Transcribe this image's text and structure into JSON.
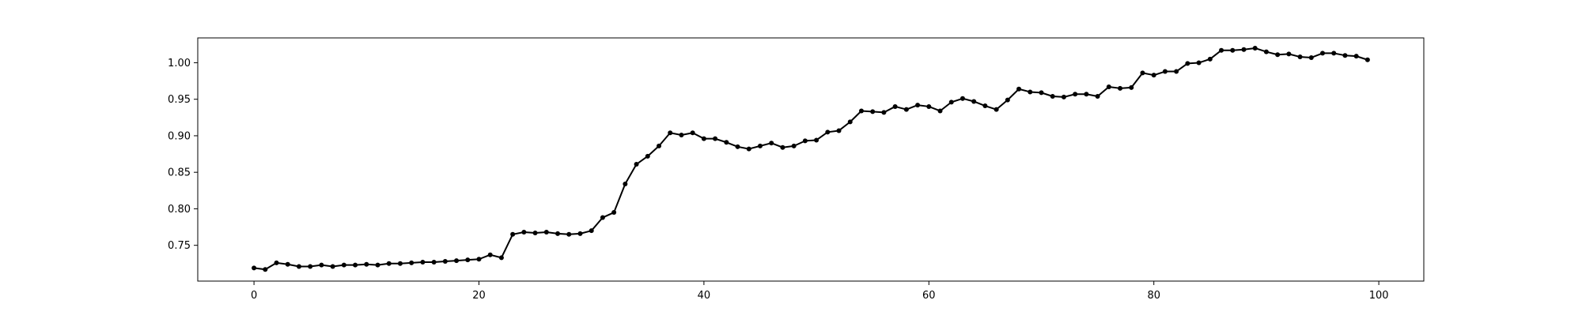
{
  "chart_data": {
    "type": "line",
    "title": "",
    "xlabel": "",
    "ylabel": "",
    "xlim": [
      -5,
      104
    ],
    "ylim": [
      0.701,
      1.034
    ],
    "xticks": [
      0,
      20,
      40,
      60,
      80,
      100
    ],
    "yticks": [
      0.75,
      0.8,
      0.85,
      0.9,
      0.95,
      1.0
    ],
    "xtick_labels": [
      "0",
      "20",
      "40",
      "60",
      "80",
      "100"
    ],
    "ytick_labels": [
      "0.75",
      "0.80",
      "0.85",
      "0.90",
      "0.95",
      "1.00"
    ],
    "grid": false,
    "legend": "none",
    "line_color": "#000000",
    "marker": "circle",
    "series": [
      {
        "x": [
          0,
          1,
          2,
          3,
          4,
          5,
          6,
          7,
          8,
          9,
          10,
          11,
          12,
          13,
          14,
          15,
          16,
          17,
          18,
          19,
          20,
          21,
          22,
          23,
          24,
          25,
          26,
          27,
          28,
          29,
          30,
          31,
          32,
          33,
          34,
          35,
          36,
          37,
          38,
          39,
          40,
          41,
          42,
          43,
          44,
          45,
          46,
          47,
          48,
          49,
          50,
          51,
          52,
          53,
          54,
          55,
          56,
          57,
          58,
          59,
          60,
          61,
          62,
          63,
          64,
          65,
          66,
          67,
          68,
          69,
          70,
          71,
          72,
          73,
          74,
          75,
          76,
          77,
          78,
          79,
          80,
          81,
          82,
          83,
          84,
          85,
          86,
          87,
          88,
          89,
          90,
          91,
          92,
          93,
          94,
          95,
          96,
          97,
          98,
          99
        ],
        "values": [
          0.719,
          0.717,
          0.726,
          0.724,
          0.721,
          0.721,
          0.723,
          0.721,
          0.723,
          0.723,
          0.724,
          0.723,
          0.725,
          0.725,
          0.726,
          0.727,
          0.727,
          0.728,
          0.729,
          0.73,
          0.731,
          0.737,
          0.733,
          0.765,
          0.768,
          0.767,
          0.768,
          0.766,
          0.765,
          0.766,
          0.77,
          0.788,
          0.795,
          0.834,
          0.861,
          0.872,
          0.886,
          0.904,
          0.901,
          0.904,
          0.896,
          0.896,
          0.891,
          0.885,
          0.882,
          0.886,
          0.89,
          0.884,
          0.886,
          0.893,
          0.894,
          0.905,
          0.907,
          0.919,
          0.934,
          0.933,
          0.932,
          0.94,
          0.936,
          0.942,
          0.94,
          0.934,
          0.946,
          0.951,
          0.947,
          0.941,
          0.936,
          0.949,
          0.964,
          0.96,
          0.959,
          0.954,
          0.953,
          0.957,
          0.957,
          0.954,
          0.967,
          0.965,
          0.966,
          0.986,
          0.983,
          0.988,
          0.988,
          0.999,
          1.0,
          1.005,
          1.017,
          1.017,
          1.018,
          1.02,
          1.015,
          1.011,
          1.012,
          1.008,
          1.007,
          1.013,
          1.013,
          1.01,
          1.009,
          1.004
        ]
      }
    ]
  }
}
